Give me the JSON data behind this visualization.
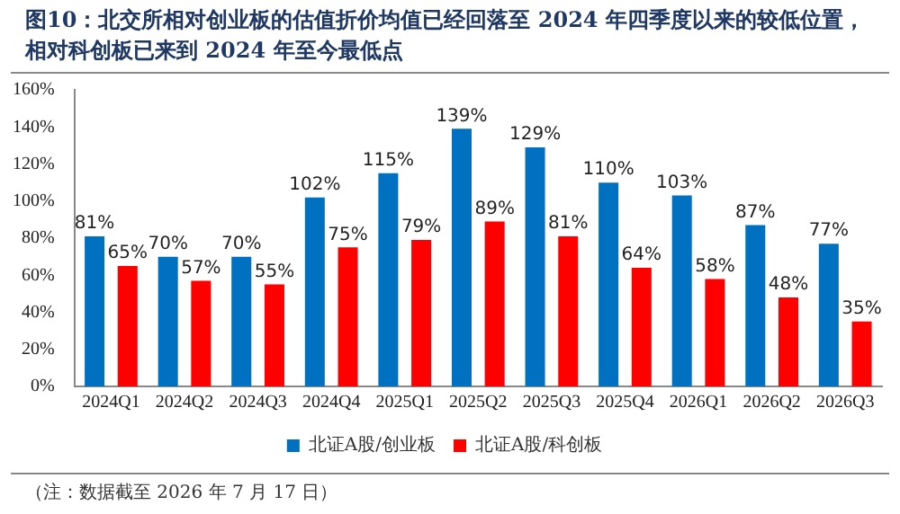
{
  "chart_data": {
    "type": "bar",
    "title": "图10：北交所相对创业板的估值折价均值已经回落至 2024 年四季度以来的较低位置，相对科创板已来到 2024 年至今最低点",
    "categories": [
      "2024Q1",
      "2024Q2",
      "2024Q3",
      "2024Q4",
      "2025Q1",
      "2025Q2",
      "2025Q3",
      "2025Q4",
      "2026Q1",
      "2026Q2",
      "2026Q3"
    ],
    "series": [
      {
        "name": "北证A股/创业板",
        "color": "#0070c0",
        "values": [
          81,
          70,
          70,
          102,
          115,
          139,
          129,
          110,
          103,
          87,
          77
        ],
        "value_labels": [
          "81%",
          "70%",
          "70%",
          "102%",
          "115%",
          "139%",
          "129%",
          "110%",
          "103%",
          "87%",
          "77%"
        ]
      },
      {
        "name": "北证A股/科创板",
        "color": "#ff0000",
        "values": [
          65,
          57,
          55,
          75,
          79,
          89,
          81,
          64,
          58,
          48,
          35
        ],
        "value_labels": [
          "65%",
          "57%",
          "55%",
          "75%",
          "79%",
          "89%",
          "81%",
          "64%",
          "58%",
          "48%",
          "35%"
        ]
      }
    ],
    "ylim": [
      0,
      160
    ],
    "yticks": [
      {
        "value": 0,
        "label": "0%"
      },
      {
        "value": 20,
        "label": "20%"
      },
      {
        "value": 40,
        "label": "40%"
      },
      {
        "value": 60,
        "label": "60%"
      },
      {
        "value": 80,
        "label": "80%"
      },
      {
        "value": 100,
        "label": "100%"
      },
      {
        "value": 120,
        "label": "120%"
      },
      {
        "value": 140,
        "label": "140%"
      },
      {
        "value": 160,
        "label": "160%"
      }
    ],
    "grid": false,
    "legend": "bottom",
    "annotations": [
      "（注：数据截至 2026 年 7 月 17 日）"
    ]
  }
}
